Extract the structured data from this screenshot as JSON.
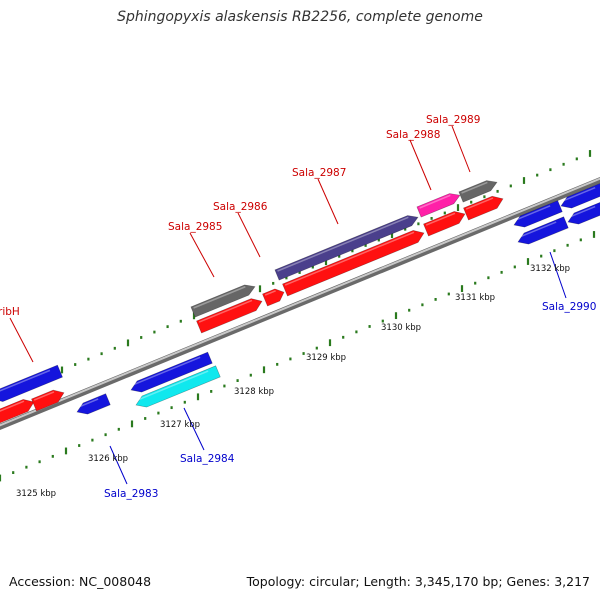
{
  "header": {
    "title": "Sphingopyxis alaskensis RB2256, complete genome"
  },
  "footer": {
    "accession": "Accession: NC_008048",
    "topology": "Topology: circular; Length: 3,345,170 bp; Genes: 3,217"
  },
  "colors": {
    "forward_cds": "#ff1010",
    "reverse_cds": "#1515dd",
    "gray_gene": "#666666",
    "purple_gene": "#4a3f8c",
    "magenta_gene": "#ff20a8",
    "cyan_gene": "#10e8ee",
    "backbone": "#9a9a9a",
    "tick": "#2a7a1e",
    "forward_label": "#cc0000",
    "reverse_label": "#0000cc"
  },
  "scale_labels": [
    "3125 kbp",
    "3126 kbp",
    "3127 kbp",
    "3128 kbp",
    "3129 kbp",
    "3130 kbp",
    "3131 kbp",
    "3132 kbp"
  ],
  "forward_labels": [
    "ribH",
    "Sala_2985",
    "Sala_2986",
    "Sala_2987",
    "Sala_2988",
    "Sala_2989"
  ],
  "reverse_labels": [
    "Sala_2983",
    "Sala_2984",
    "Sala_2990"
  ]
}
